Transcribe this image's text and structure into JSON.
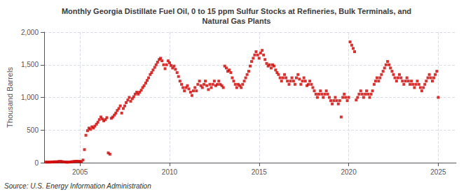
{
  "chart_data": {
    "type": "scatter",
    "title": "Monthly Georgia Distillate Fuel Oil, 0 to 15 ppm Sulfur Stocks at Refineries, Bulk Terminals, and\nNatural Gas Plants",
    "ylabel": "Thousand Barrels",
    "annotations": [
      "Source: U.S. Energy Information Administration"
    ],
    "color": "#cc0000",
    "marker": "square",
    "grid": true,
    "xlim": [
      2003.0,
      2026.0
    ],
    "ylim": [
      0,
      2000
    ],
    "xticks": [
      2005,
      2010,
      2015,
      2020,
      2025
    ],
    "yticks": [
      0,
      500,
      {
        "value": 1000,
        "label": "1,000"
      },
      {
        "value": 1500,
        "label": "1,500"
      },
      {
        "value": 2000,
        "label": "2,000"
      }
    ],
    "x": [
      2003.08,
      2003.17,
      2003.25,
      2003.33,
      2003.42,
      2003.5,
      2003.58,
      2003.67,
      2003.75,
      2003.83,
      2003.92,
      2004.0,
      2004.08,
      2004.17,
      2004.25,
      2004.33,
      2004.42,
      2004.5,
      2004.58,
      2004.67,
      2004.75,
      2004.83,
      2004.92,
      2005.0,
      2005.08,
      2005.17,
      2005.25,
      2005.33,
      2005.42,
      2005.5,
      2005.58,
      2005.67,
      2005.75,
      2005.83,
      2005.92,
      2006.0,
      2006.08,
      2006.17,
      2006.25,
      2006.33,
      2006.42,
      2006.5,
      2006.58,
      2006.67,
      2006.75,
      2006.83,
      2006.92,
      2007.0,
      2007.08,
      2007.17,
      2007.25,
      2007.33,
      2007.42,
      2007.5,
      2007.58,
      2007.67,
      2007.75,
      2007.83,
      2007.92,
      2008.0,
      2008.08,
      2008.17,
      2008.25,
      2008.33,
      2008.42,
      2008.5,
      2008.58,
      2008.67,
      2008.75,
      2008.83,
      2008.92,
      2009.0,
      2009.08,
      2009.17,
      2009.25,
      2009.33,
      2009.42,
      2009.5,
      2009.58,
      2009.67,
      2009.75,
      2009.83,
      2009.92,
      2010.0,
      2010.08,
      2010.17,
      2010.25,
      2010.33,
      2010.42,
      2010.5,
      2010.58,
      2010.67,
      2010.75,
      2010.83,
      2010.92,
      2011.0,
      2011.08,
      2011.17,
      2011.25,
      2011.33,
      2011.42,
      2011.5,
      2011.58,
      2011.67,
      2011.75,
      2011.83,
      2011.92,
      2012.0,
      2012.08,
      2012.17,
      2012.25,
      2012.33,
      2012.42,
      2012.5,
      2012.58,
      2012.67,
      2012.75,
      2012.83,
      2012.92,
      2013.0,
      2013.08,
      2013.17,
      2013.25,
      2013.33,
      2013.42,
      2013.5,
      2013.58,
      2013.67,
      2013.75,
      2013.83,
      2013.92,
      2014.0,
      2014.08,
      2014.17,
      2014.25,
      2014.33,
      2014.42,
      2014.5,
      2014.58,
      2014.67,
      2014.75,
      2014.83,
      2014.92,
      2015.0,
      2015.08,
      2015.17,
      2015.25,
      2015.33,
      2015.42,
      2015.5,
      2015.58,
      2015.67,
      2015.75,
      2015.83,
      2015.92,
      2016.0,
      2016.08,
      2016.17,
      2016.25,
      2016.33,
      2016.42,
      2016.5,
      2016.58,
      2016.67,
      2016.75,
      2016.83,
      2016.92,
      2017.0,
      2017.08,
      2017.17,
      2017.25,
      2017.33,
      2017.42,
      2017.5,
      2017.58,
      2017.67,
      2017.75,
      2017.83,
      2017.92,
      2018.0,
      2018.08,
      2018.17,
      2018.25,
      2018.33,
      2018.42,
      2018.5,
      2018.58,
      2018.67,
      2018.75,
      2018.83,
      2018.92,
      2019.0,
      2019.08,
      2019.17,
      2019.25,
      2019.33,
      2019.42,
      2019.5,
      2019.58,
      2019.67,
      2019.75,
      2019.83,
      2019.92,
      2020.0,
      2020.08,
      2020.17,
      2020.25,
      2020.33,
      2020.42,
      2020.5,
      2020.58,
      2020.67,
      2020.75,
      2020.83,
      2020.92,
      2021.0,
      2021.08,
      2021.17,
      2021.25,
      2021.33,
      2021.42,
      2021.5,
      2021.58,
      2021.67,
      2021.75,
      2021.83,
      2021.92,
      2022.0,
      2022.08,
      2022.17,
      2022.25,
      2022.33,
      2022.42,
      2022.5,
      2022.58,
      2022.67,
      2022.75,
      2022.83,
      2022.92,
      2023.0,
      2023.08,
      2023.17,
      2023.25,
      2023.33,
      2023.42,
      2023.5,
      2023.58,
      2023.67,
      2023.75,
      2023.83,
      2023.92,
      2024.0,
      2024.08,
      2024.17,
      2024.25,
      2024.33,
      2024.42,
      2024.5,
      2024.58,
      2024.67,
      2024.75,
      2024.83,
      2024.92,
      2025.0
    ],
    "values": [
      10,
      8,
      10,
      8,
      12,
      10,
      14,
      12,
      15,
      18,
      20,
      15,
      12,
      10,
      8,
      8,
      10,
      12,
      15,
      18,
      20,
      22,
      20,
      18,
      15,
      40,
      200,
      420,
      490,
      530,
      510,
      550,
      530,
      560,
      590,
      620,
      660,
      700,
      670,
      640,
      660,
      690,
      150,
      130,
      680,
      700,
      730,
      760,
      800,
      830,
      870,
      760,
      830,
      870,
      920,
      960,
      1000,
      940,
      980,
      1010,
      1050,
      1080,
      1050,
      1080,
      1110,
      1150,
      1180,
      1220,
      1260,
      1300,
      1350,
      1380,
      1420,
      1460,
      1500,
      1540,
      1580,
      1600,
      1560,
      1500,
      1440,
      1500,
      1560,
      1530,
      1490,
      1450,
      1480,
      1430,
      1380,
      1320,
      1250,
      1200,
      1150,
      1100,
      1150,
      1180,
      1130,
      1080,
      1030,
      1100,
      1150,
      1100,
      1200,
      1250,
      1180,
      1150,
      1200,
      1250,
      1180,
      1120,
      1200,
      1150,
      1200,
      1250,
      1180,
      1200,
      1250,
      1200,
      1180,
      1150,
      1480,
      1450,
      1400,
      1420,
      1380,
      1300,
      1250,
      1200,
      1150,
      1200,
      1180,
      1150,
      1200,
      1250,
      1300,
      1350,
      1400,
      1480,
      1550,
      1600,
      1650,
      1700,
      1650,
      1600,
      1680,
      1720,
      1650,
      1580,
      1520,
      1480,
      1500,
      1450,
      1500,
      1480,
      1420,
      1380,
      1350,
      1300,
      1250,
      1300,
      1350,
      1300,
      1250,
      1200,
      1250,
      1300,
      1250,
      1200,
      1300,
      1350,
      1280,
      1200,
      1250,
      1300,
      1250,
      1180,
      1200,
      1250,
      1200,
      1150,
      1100,
      1050,
      1000,
      1050,
      1100,
      1050,
      1000,
      1050,
      1100,
      1050,
      1000,
      950,
      900,
      950,
      1000,
      950,
      900,
      950,
      700,
      1000,
      1050,
      1000,
      950,
      1000,
      1850,
      1800,
      1750,
      1700,
      960,
      1000,
      1050,
      1100,
      1050,
      1000,
      1050,
      1100,
      1050,
      1000,
      1050,
      1100,
      1200,
      1250,
      1300,
      1250,
      1300,
      1350,
      1400,
      1450,
      1500,
      1550,
      1500,
      1450,
      1400,
      1350,
      1300,
      1250,
      1300,
      1350,
      1300,
      1250,
      1200,
      1250,
      1300,
      1250,
      1200,
      1250,
      1200,
      1150,
      1200,
      1250,
      1200,
      1150,
      1100,
      1150,
      1200,
      1250,
      1300,
      1350,
      1300,
      1250,
      1300,
      1350,
      1400,
      1000
    ]
  }
}
